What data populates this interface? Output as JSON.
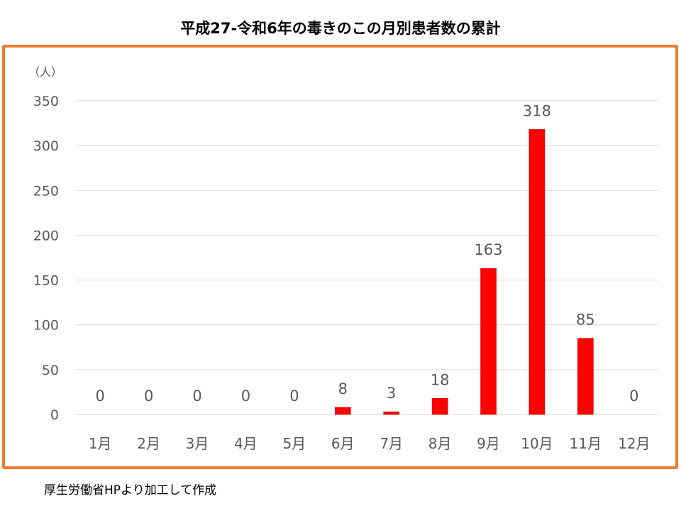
{
  "title": "平成27-令和6年の毒きのこの月別患者数の累計",
  "footer": "厚生労働省HPより加工して作成",
  "colors": {
    "bar": "#FF0000",
    "frame": "#ED7D31",
    "grid": "#D9D9D9",
    "text": "#595959"
  },
  "chart_data": {
    "type": "bar",
    "title": "平成27-令和6年の毒きのこの月別患者数の累計",
    "unit_label": "（人）",
    "categories": [
      "1月",
      "2月",
      "3月",
      "4月",
      "5月",
      "6月",
      "7月",
      "8月",
      "9月",
      "10月",
      "11月",
      "12月"
    ],
    "values": [
      0,
      0,
      0,
      0,
      0,
      8,
      3,
      18,
      163,
      318,
      85,
      0
    ],
    "ylim": [
      0,
      350
    ],
    "yticks": [
      0,
      50,
      100,
      150,
      200,
      250,
      300,
      350
    ],
    "grid": true,
    "data_labels": true,
    "legend": "none"
  }
}
